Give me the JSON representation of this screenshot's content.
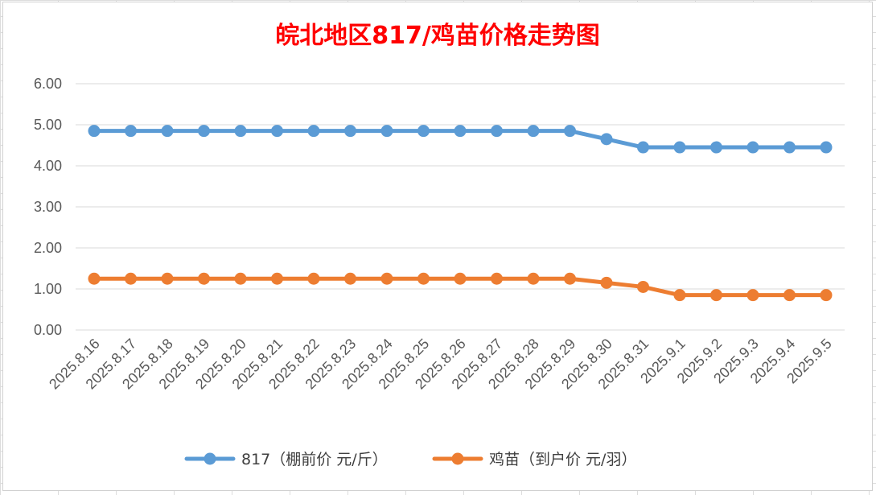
{
  "chart_data": {
    "type": "line",
    "title": "皖北地区817/鸡苗价格走势图",
    "categories": [
      "2025.8.16",
      "2025.8.17",
      "2025.8.18",
      "2025.8.19",
      "2025.8.20",
      "2025.8.21",
      "2025.8.22",
      "2025.8.23",
      "2025.8.24",
      "2025.8.25",
      "2025.8.26",
      "2025.8.27",
      "2025.8.28",
      "2025.8.29",
      "2025.8.30",
      "2025.8.31",
      "2025.9.1",
      "2025.9.2",
      "2025.9.3",
      "2025.9.4",
      "2025.9.5"
    ],
    "y_ticks": [
      "0.00",
      "1.00",
      "2.00",
      "3.00",
      "4.00",
      "5.00",
      "6.00"
    ],
    "ylim": [
      0,
      6
    ],
    "grid": true,
    "legend_position": "bottom",
    "series": [
      {
        "name": "817（棚前价 元/斤）",
        "color": "#5b9bd5",
        "values": [
          4.85,
          4.85,
          4.85,
          4.85,
          4.85,
          4.85,
          4.85,
          4.85,
          4.85,
          4.85,
          4.85,
          4.85,
          4.85,
          4.85,
          4.65,
          4.45,
          4.45,
          4.45,
          4.45,
          4.45,
          4.45
        ]
      },
      {
        "name": "鸡苗（到户价 元/羽）",
        "color": "#ed7d31",
        "values": [
          1.25,
          1.25,
          1.25,
          1.25,
          1.25,
          1.25,
          1.25,
          1.25,
          1.25,
          1.25,
          1.25,
          1.25,
          1.25,
          1.25,
          1.15,
          1.05,
          0.85,
          0.85,
          0.85,
          0.85,
          0.85
        ]
      }
    ]
  }
}
